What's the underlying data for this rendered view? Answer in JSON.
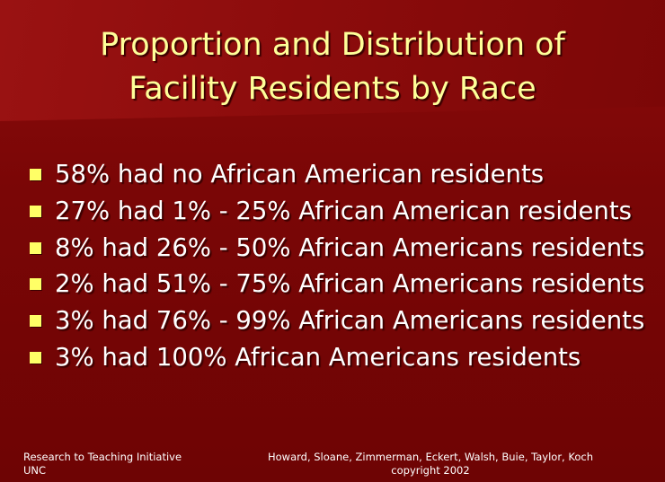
{
  "slide": {
    "title_lines": [
      "Proportion and Distribution of",
      "Facility Residents by Race"
    ],
    "bullets": [
      "58% had no African American residents",
      "27% had 1% - 25% African American residents",
      "8% had 26% - 50% African Americans residents",
      "2% had 51% - 75% African Americans residents",
      "3% had 76% - 99% African Americans residents",
      "3% had 100% African Americans residents"
    ],
    "footer_left": [
      "Research to Teaching Initiative",
      "UNC"
    ],
    "footer_right": [
      "Howard, Sloane, Zimmerman, Eckert, Walsh, Buie, Taylor, Koch",
      "copyright 2002"
    ]
  },
  "colors": {
    "background": "#7a0606",
    "title_text": "#ffff99",
    "bullet_marker": "#ffff66",
    "body_text": "#ffffff"
  }
}
